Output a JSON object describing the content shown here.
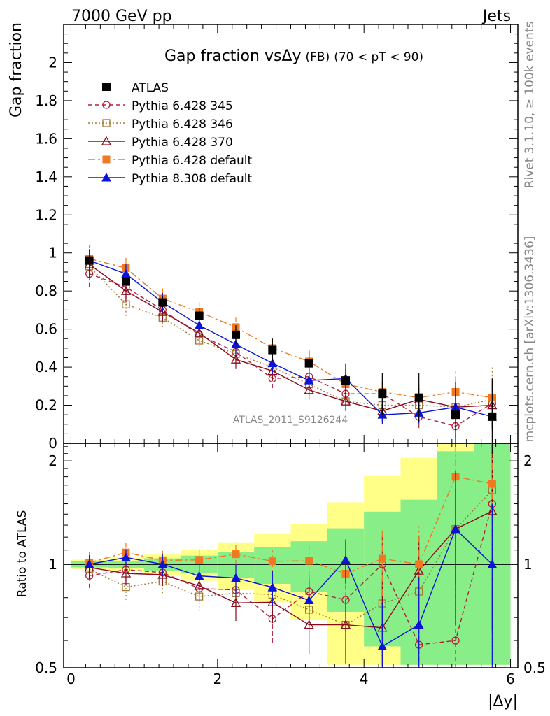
{
  "chart_data": {
    "type": "line",
    "header_left": "7000 GeV pp",
    "header_right": "Jets",
    "title": {
      "main": "Gap fraction vs",
      "delta": "Δy",
      "fb": "(FB)",
      "cut": "(70 < pT <  90)"
    },
    "ylabel": "Gap fraction",
    "ratio_ylabel": "Ratio to ATLAS",
    "xlabel": "|Δy|",
    "watermark": "ATLAS_2011_S9126244",
    "side_text_top": "Rivet 3.1.10, ≥ 100k events",
    "side_text_bottom": "mcplots.cern.ch [arXiv:1306.3436]",
    "xlim": [
      -0.1,
      6.1
    ],
    "ylim": [
      0,
      2.2
    ],
    "ratio_ylim": [
      0.5,
      2.25
    ],
    "ratio_scale": "log",
    "x_ticks": [
      "0",
      "2",
      "4",
      "6"
    ],
    "y_ticks": [
      "0",
      "0.2",
      "0.4",
      "0.6",
      "0.8",
      "1",
      "1.2",
      "1.4",
      "1.6",
      "1.8",
      "2"
    ],
    "ratio_ticks": [
      "0.5",
      "1",
      "2"
    ],
    "legend_position": "top-left",
    "x": [
      0.25,
      0.75,
      1.25,
      1.75,
      2.25,
      2.75,
      3.25,
      3.75,
      4.25,
      4.75,
      5.25,
      5.75
    ],
    "reference": {
      "name": "ATLAS",
      "values": [
        0.96,
        0.85,
        0.74,
        0.67,
        0.57,
        0.49,
        0.42,
        0.33,
        0.26,
        0.24,
        0.15,
        0.14
      ],
      "band_inner": [
        0.02,
        0.02,
        0.03,
        0.04,
        0.05,
        0.06,
        0.07,
        0.09,
        0.11,
        0.13,
        0.17,
        0.2
      ],
      "band_outer": [
        0.03,
        0.04,
        0.05,
        0.07,
        0.09,
        0.11,
        0.13,
        0.17,
        0.21,
        0.25,
        0.35,
        0.4
      ],
      "color": "#000000"
    },
    "series": [
      {
        "name": "Pythia 6.428 345",
        "color": "#b0203c",
        "dash": "6,4",
        "marker": "circle",
        "values": [
          0.89,
          0.82,
          0.7,
          0.57,
          0.48,
          0.34,
          0.35,
          0.26,
          0.26,
          0.14,
          0.09,
          0.21
        ],
        "err": [
          0.07,
          0.06,
          0.05,
          0.05,
          0.05,
          0.05,
          0.05,
          0.05,
          0.06,
          0.06,
          0.06,
          0.12
        ]
      },
      {
        "name": "Pythia 6.428 346",
        "color": "#a07830",
        "dash": "2,3",
        "marker": "square-open",
        "values": [
          0.93,
          0.73,
          0.66,
          0.54,
          0.47,
          0.4,
          0.31,
          0.22,
          0.2,
          0.2,
          0.19,
          0.23
        ],
        "err": [
          0.07,
          0.06,
          0.05,
          0.05,
          0.05,
          0.05,
          0.05,
          0.05,
          0.06,
          0.06,
          0.06,
          0.17
        ]
      },
      {
        "name": "Pythia 6.428 370",
        "color": "#8b0a1e",
        "dash": "",
        "marker": "triangle-open",
        "values": [
          0.94,
          0.8,
          0.69,
          0.58,
          0.44,
          0.38,
          0.28,
          0.22,
          0.17,
          0.23,
          0.19,
          0.2
        ],
        "err": [
          0.07,
          0.06,
          0.05,
          0.05,
          0.05,
          0.05,
          0.05,
          0.05,
          0.06,
          0.06,
          0.06,
          0.11
        ]
      },
      {
        "name": "Pythia 6.428 default",
        "color": "#f07820",
        "dash": "10,4,3,4",
        "marker": "square-filled",
        "values": [
          0.97,
          0.92,
          0.76,
          0.69,
          0.61,
          0.5,
          0.43,
          0.31,
          0.27,
          0.24,
          0.27,
          0.24
        ],
        "err": [
          0.07,
          0.06,
          0.06,
          0.05,
          0.05,
          0.05,
          0.05,
          0.05,
          0.06,
          0.07,
          0.11,
          0.12
        ]
      },
      {
        "name": "Pythia 8.308 default",
        "color": "#0a14d8",
        "dash": "",
        "marker": "triangle-filled",
        "values": [
          0.96,
          0.89,
          0.74,
          0.62,
          0.52,
          0.42,
          0.33,
          0.34,
          0.15,
          0.16,
          0.19,
          0.14
        ],
        "err": [
          0.06,
          0.05,
          0.05,
          0.05,
          0.05,
          0.05,
          0.05,
          0.05,
          0.05,
          0.06,
          0.09,
          0.07
        ]
      }
    ]
  }
}
